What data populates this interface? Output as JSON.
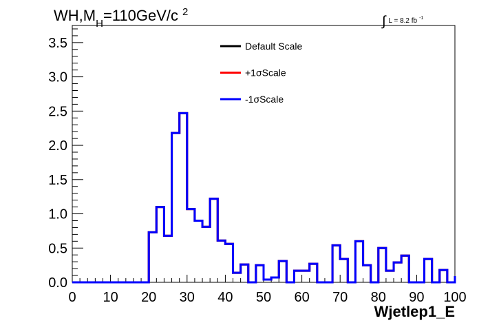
{
  "chart_data": {
    "type": "line",
    "title_parts": {
      "a": "WH,M",
      "sub": "H",
      "b": "=110GeV/c",
      "sup": "2"
    },
    "lumi_parts": {
      "integral": "∫",
      "text": "L = 8.2 fb",
      "sup": "-1"
    },
    "xlabel": "Wjetlep1_E",
    "ylabel": "",
    "xlim": [
      0,
      100
    ],
    "ylim": [
      0,
      3.75
    ],
    "x_ticks": [
      "0",
      "10",
      "20",
      "30",
      "40",
      "50",
      "60",
      "70",
      "80",
      "90",
      "100"
    ],
    "y_ticks": [
      "0.0",
      "0.5",
      "1.0",
      "1.5",
      "2.0",
      "2.5",
      "3.0",
      "3.5"
    ],
    "bin_width": 2,
    "bin_edges_start": 0,
    "legend_placement": "top-center",
    "series": [
      {
        "name": "Default Scale",
        "color": "#000000",
        "line_width": 3,
        "values": [
          0,
          0,
          0,
          0,
          0,
          0,
          0,
          0,
          0,
          0,
          0.73,
          1.1,
          0.68,
          2.18,
          2.47,
          1.07,
          0.9,
          0.81,
          1.22,
          0.61,
          0.56,
          0.14,
          0.26,
          0,
          0.25,
          0.04,
          0.07,
          0.31,
          0,
          0.17,
          0.17,
          0.27,
          0,
          0,
          0.54,
          0.34,
          0,
          0.6,
          0.25,
          0,
          0.5,
          0.17,
          0.29,
          0.39,
          0,
          0,
          0.34,
          0,
          0.18,
          0,
          0.09
        ]
      },
      {
        "name": "+1σScale",
        "color": "#ff0000",
        "line_width": 3,
        "values": [
          0,
          0,
          0,
          0,
          0,
          0,
          0,
          0,
          0,
          0,
          0.73,
          1.1,
          0.68,
          2.18,
          2.47,
          1.07,
          0.9,
          0.81,
          1.22,
          0.61,
          0.56,
          0.14,
          0.26,
          0,
          0.25,
          0.04,
          0.07,
          0.31,
          0,
          0.17,
          0.17,
          0.27,
          0,
          0,
          0.54,
          0.34,
          0,
          0.6,
          0.25,
          0,
          0.5,
          0.17,
          0.29,
          0.39,
          0,
          0,
          0.34,
          0,
          0.18,
          0,
          0.09
        ]
      },
      {
        "name": "-1σScale",
        "color": "#0000ff",
        "line_width": 3,
        "values": [
          0,
          0,
          0,
          0,
          0,
          0,
          0,
          0,
          0,
          0,
          0.73,
          1.1,
          0.68,
          2.18,
          2.47,
          1.07,
          0.9,
          0.81,
          1.22,
          0.61,
          0.56,
          0.14,
          0.26,
          0,
          0.25,
          0.04,
          0.07,
          0.31,
          0,
          0.17,
          0.17,
          0.27,
          0,
          0,
          0.54,
          0.34,
          0,
          0.6,
          0.25,
          0,
          0.5,
          0.17,
          0.29,
          0.39,
          0,
          0,
          0.34,
          0,
          0.18,
          0,
          0.09
        ]
      }
    ]
  }
}
